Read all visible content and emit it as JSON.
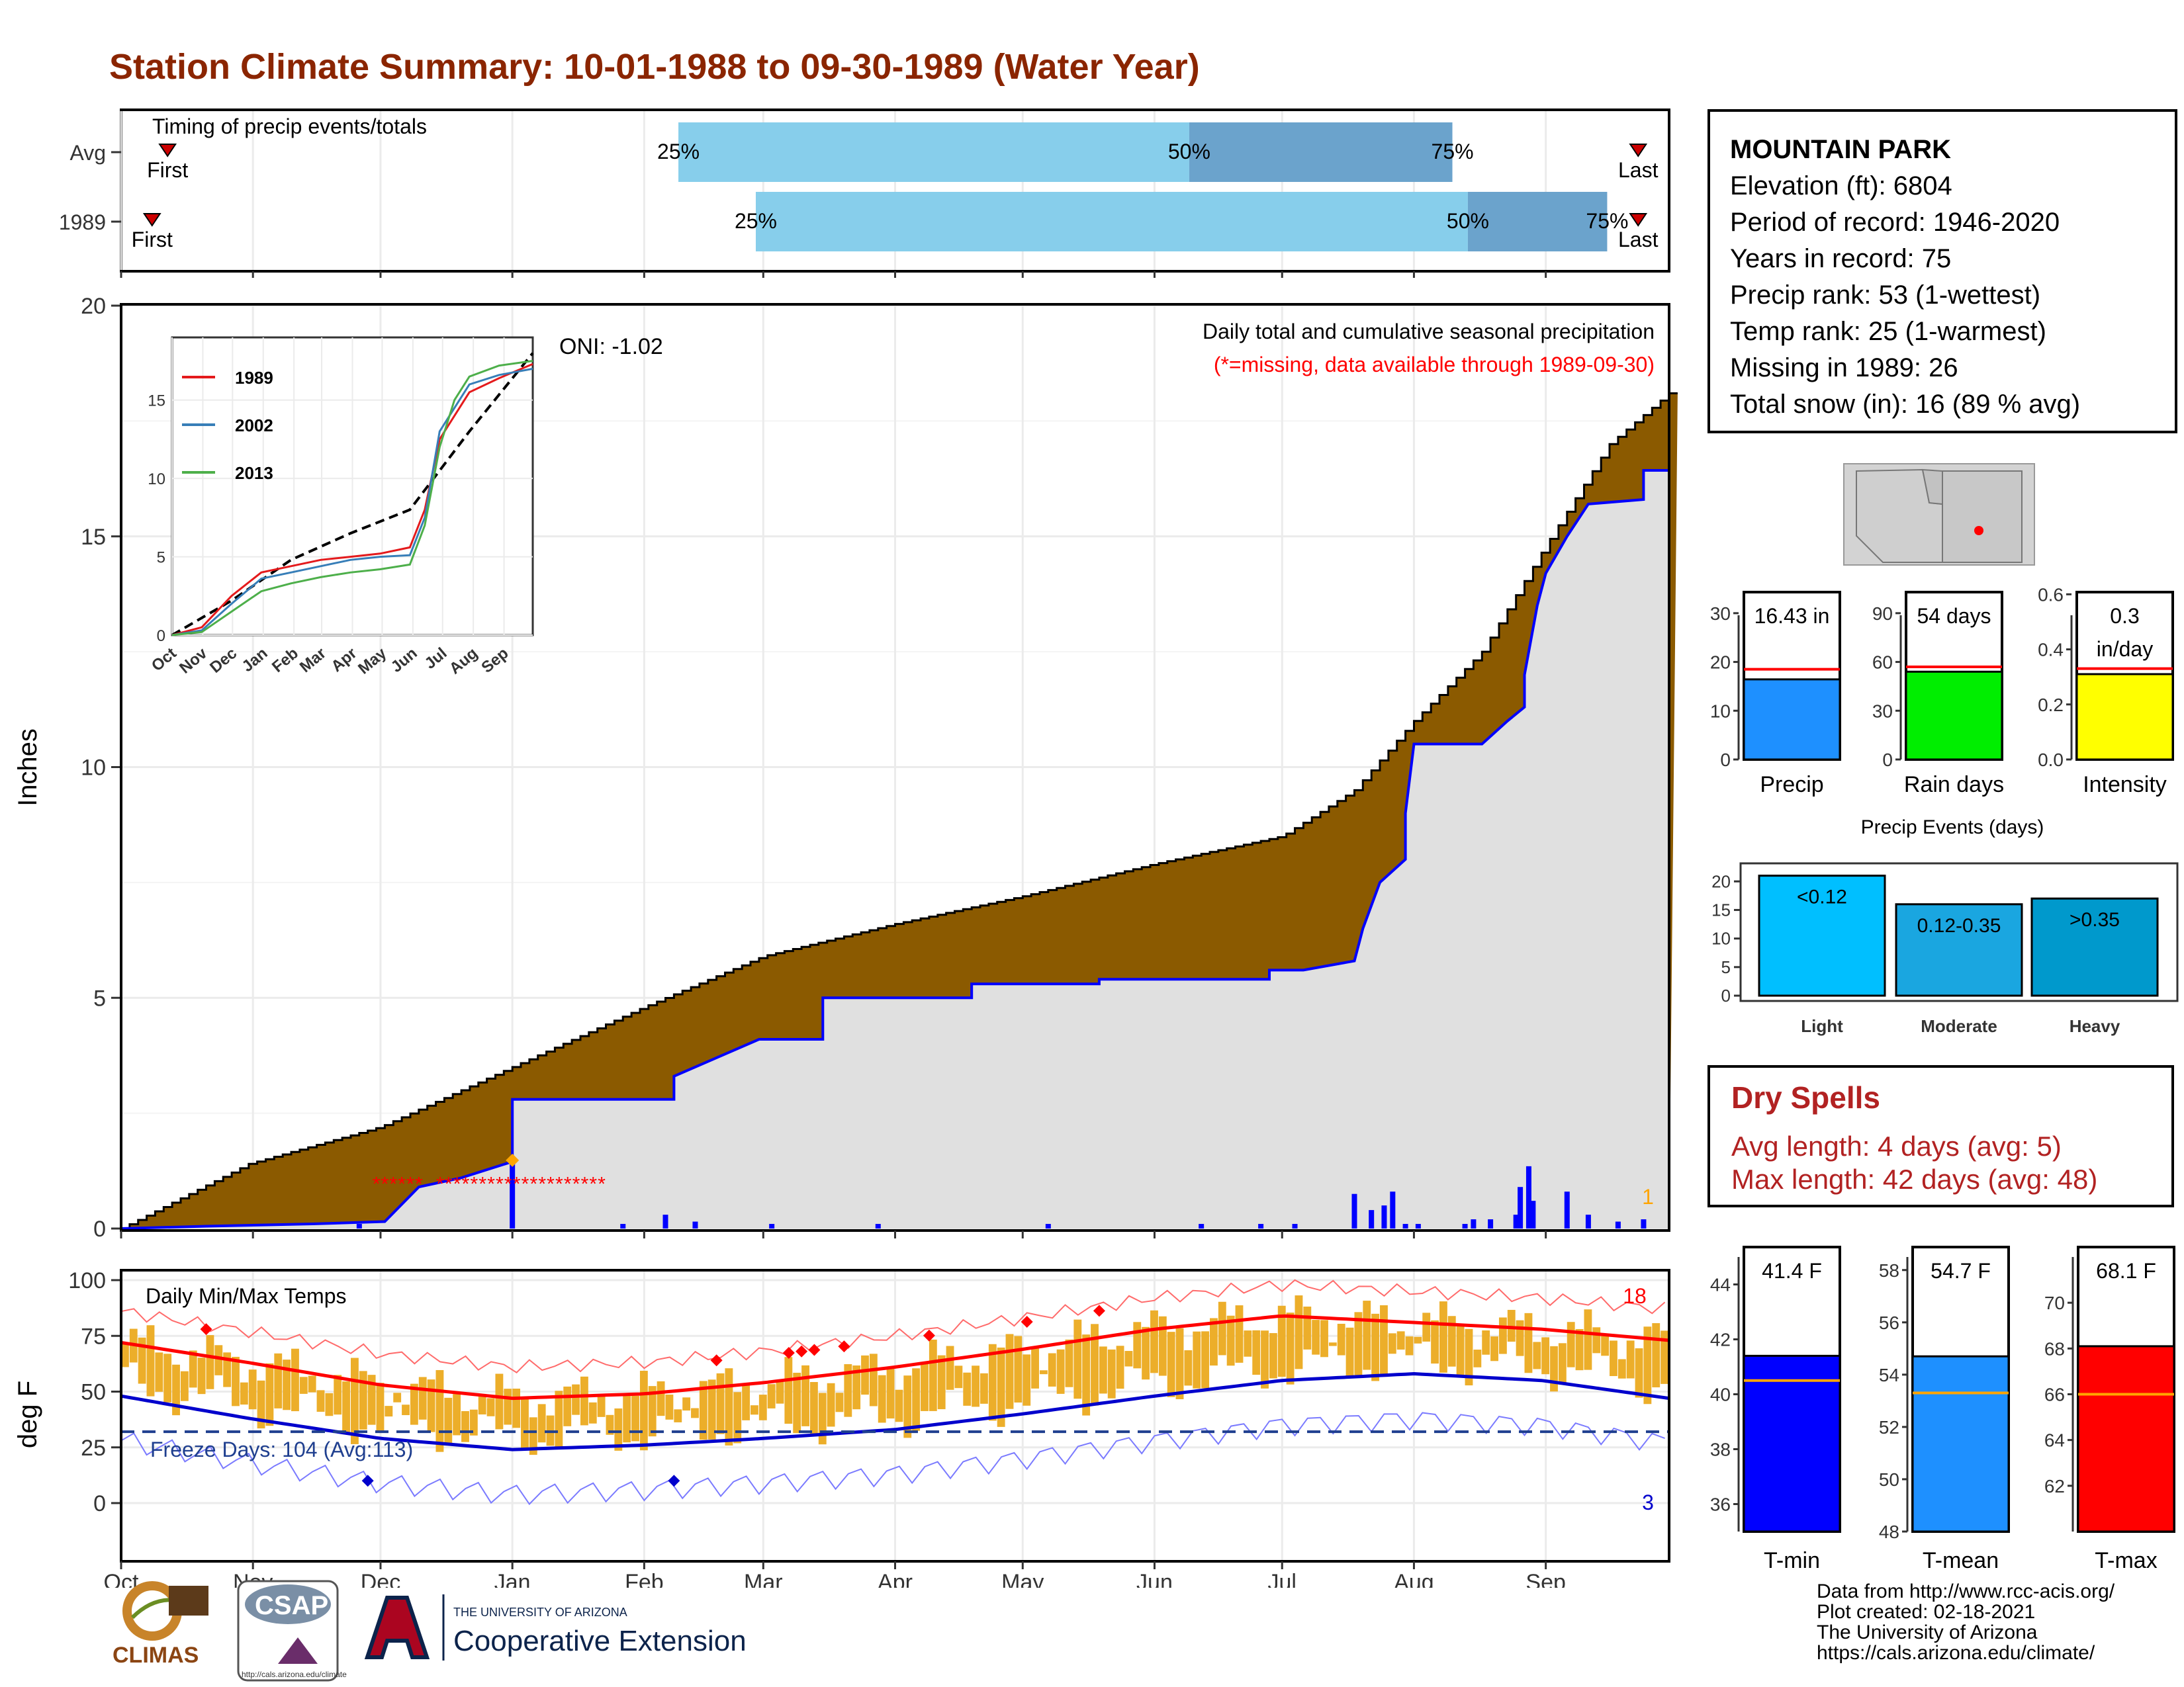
{
  "title": "Station Climate Summary: 10-01-1988 to 09-30-1989 (Water Year)",
  "timing": {
    "label": "Timing of precip events/totals",
    "rows": [
      {
        "name": "Avg",
        "q25": 0.36,
        "q50": 0.69,
        "q75": 0.86,
        "first": 0.03,
        "last": 0.98
      },
      {
        "name": "1989",
        "q25": 0.41,
        "q50": 0.87,
        "q75": 0.96,
        "first": 0.02,
        "last": 0.98
      }
    ],
    "pct_labels": [
      "25%",
      "50%",
      "75%"
    ],
    "first_label": "First",
    "last_label": "Last"
  },
  "station": {
    "name": "MOUNTAIN PARK",
    "lines": [
      "Elevation (ft): 6804",
      "Period of record: 1946-2020",
      "Years in record: 75",
      "Precip rank: 53 (1-wettest)",
      "Temp rank: 25 (1-warmest)",
      "Missing in 1989: 26",
      "Total snow (in): 16 (89 % avg)"
    ]
  },
  "precip_chart": {
    "ylabel": "Inches",
    "oni_label": "ONI: -1.02",
    "title": "Daily total and cumulative seasonal precipitation",
    "note": "(*=missing, data available through 1989-09-30)",
    "corner_count": "1",
    "yticks": [
      0,
      5,
      10,
      15,
      20
    ],
    "months": [
      "Oct",
      "Nov",
      "Dec",
      "Jan",
      "Feb",
      "Mar",
      "Apr",
      "May",
      "Jun",
      "Jul",
      "Aug",
      "Sep"
    ],
    "avg_cum": [
      [
        0,
        0
      ],
      [
        30,
        1.4
      ],
      [
        61,
        2.2
      ],
      [
        92,
        3.5
      ],
      [
        123,
        4.8
      ],
      [
        151,
        5.9
      ],
      [
        182,
        6.6
      ],
      [
        212,
        7.2
      ],
      [
        243,
        7.9
      ],
      [
        273,
        8.5
      ],
      [
        290,
        9.5
      ],
      [
        304,
        11.0
      ],
      [
        320,
        12.5
      ],
      [
        335,
        14.8
      ],
      [
        350,
        17.0
      ],
      [
        364,
        18.1
      ]
    ],
    "obs_cum": [
      [
        0,
        0
      ],
      [
        20,
        0.05
      ],
      [
        45,
        0.1
      ],
      [
        62,
        0.15
      ],
      [
        70,
        0.9
      ],
      [
        80,
        1.1
      ],
      [
        92,
        1.45
      ],
      [
        92,
        2.8
      ],
      [
        130,
        2.8
      ],
      [
        130,
        3.3
      ],
      [
        140,
        3.7
      ],
      [
        150,
        4.1
      ],
      [
        165,
        4.1
      ],
      [
        165,
        5.0
      ],
      [
        200,
        5.0
      ],
      [
        200,
        5.3
      ],
      [
        230,
        5.3
      ],
      [
        230,
        5.4
      ],
      [
        270,
        5.4
      ],
      [
        270,
        5.6
      ],
      [
        278,
        5.6
      ],
      [
        290,
        5.8
      ],
      [
        292,
        6.5
      ],
      [
        296,
        7.5
      ],
      [
        302,
        8.0
      ],
      [
        302,
        9.0
      ],
      [
        304,
        10.5
      ],
      [
        320,
        10.5
      ],
      [
        326,
        11.0
      ],
      [
        330,
        11.3
      ],
      [
        330,
        12.0
      ],
      [
        333,
        13.5
      ],
      [
        335,
        14.2
      ],
      [
        340,
        15.0
      ],
      [
        345,
        15.7
      ],
      [
        358,
        15.8
      ],
      [
        358,
        16.43
      ],
      [
        364,
        16.43
      ]
    ],
    "daily_bars": [
      [
        56,
        0.1
      ],
      [
        92,
        1.45
      ],
      [
        118,
        0.1
      ],
      [
        128,
        0.3
      ],
      [
        135,
        0.15
      ],
      [
        153,
        0.1
      ],
      [
        178,
        0.1
      ],
      [
        218,
        0.1
      ],
      [
        254,
        0.1
      ],
      [
        268,
        0.1
      ],
      [
        276,
        0.1
      ],
      [
        290,
        0.75
      ],
      [
        294,
        0.4
      ],
      [
        297,
        0.5
      ],
      [
        299,
        0.8
      ],
      [
        302,
        0.1
      ],
      [
        305,
        0.1
      ],
      [
        316,
        0.1
      ],
      [
        318,
        0.2
      ],
      [
        322,
        0.2
      ],
      [
        328,
        0.3
      ],
      [
        329,
        0.9
      ],
      [
        331,
        1.35
      ],
      [
        332,
        0.6
      ],
      [
        340,
        0.8
      ],
      [
        345,
        0.3
      ],
      [
        352,
        0.15
      ],
      [
        358,
        0.2
      ]
    ],
    "missing_days": [
      60,
      62,
      64,
      66,
      68,
      70,
      75,
      77,
      79,
      81,
      83,
      85,
      87,
      89,
      91,
      93,
      95,
      97,
      99,
      101,
      103,
      105,
      107,
      109,
      111,
      113
    ],
    "inset": {
      "series": [
        {
          "name": "1989",
          "color": "#e41a1c",
          "values": [
            [
              0,
              0
            ],
            [
              30,
              0.5
            ],
            [
              60,
              2.5
            ],
            [
              90,
              4.0
            ],
            [
              120,
              4.4
            ],
            [
              150,
              4.8
            ],
            [
              180,
              5.0
            ],
            [
              210,
              5.2
            ],
            [
              240,
              5.6
            ],
            [
              255,
              8.0
            ],
            [
              270,
              12.5
            ],
            [
              285,
              14.0
            ],
            [
              300,
              15.5
            ],
            [
              330,
              16.4
            ],
            [
              364,
              17.3
            ]
          ]
        },
        {
          "name": "2002",
          "color": "#377eb8",
          "values": [
            [
              0,
              0
            ],
            [
              30,
              0.3
            ],
            [
              60,
              2.0
            ],
            [
              90,
              3.6
            ],
            [
              120,
              4.0
            ],
            [
              150,
              4.4
            ],
            [
              180,
              4.8
            ],
            [
              210,
              5.0
            ],
            [
              240,
              5.1
            ],
            [
              255,
              7.5
            ],
            [
              270,
              13.0
            ],
            [
              285,
              14.5
            ],
            [
              300,
              16.0
            ],
            [
              330,
              16.6
            ],
            [
              364,
              17.0
            ]
          ]
        },
        {
          "name": "2013",
          "color": "#4daf4a",
          "values": [
            [
              0,
              0
            ],
            [
              30,
              0.2
            ],
            [
              60,
              1.5
            ],
            [
              90,
              2.8
            ],
            [
              120,
              3.3
            ],
            [
              150,
              3.7
            ],
            [
              180,
              4.0
            ],
            [
              210,
              4.2
            ],
            [
              240,
              4.5
            ],
            [
              255,
              7.0
            ],
            [
              270,
              12.0
            ],
            [
              285,
              15.0
            ],
            [
              300,
              16.5
            ],
            [
              330,
              17.2
            ],
            [
              364,
              17.5
            ]
          ]
        }
      ],
      "avg": [
        [
          0,
          0
        ],
        [
          60,
          2.2
        ],
        [
          120,
          4.8
        ],
        [
          180,
          6.5
        ],
        [
          240,
          8.0
        ],
        [
          300,
          13.0
        ],
        [
          364,
          18.0
        ]
      ],
      "yticks": [
        0,
        5,
        10,
        15
      ],
      "months": [
        "Oct",
        "Nov",
        "Dec",
        "Jan",
        "Feb",
        "Mar",
        "Apr",
        "May",
        "Jun",
        "Jul",
        "Aug",
        "Sep"
      ]
    }
  },
  "temp_chart": {
    "ylabel": "deg F",
    "title": "Daily Min/Max Temps",
    "freeze_label": "Freeze Days: 104 (Avg:113)",
    "red_count": "18",
    "blue_count": "3",
    "yticks": [
      0,
      25,
      50,
      75,
      100
    ],
    "months": [
      "Oct",
      "Nov",
      "Dec",
      "Jan",
      "Feb",
      "Mar",
      "Apr",
      "May",
      "Jun",
      "Jul",
      "Aug",
      "Sep"
    ],
    "avg_max": [
      [
        0,
        72
      ],
      [
        30,
        63
      ],
      [
        61,
        53
      ],
      [
        92,
        47
      ],
      [
        123,
        49
      ],
      [
        151,
        54
      ],
      [
        182,
        61
      ],
      [
        212,
        69
      ],
      [
        243,
        78
      ],
      [
        273,
        84
      ],
      [
        304,
        81
      ],
      [
        334,
        78
      ],
      [
        364,
        73
      ]
    ],
    "avg_min": [
      [
        0,
        48
      ],
      [
        30,
        38
      ],
      [
        61,
        29
      ],
      [
        92,
        24
      ],
      [
        123,
        26
      ],
      [
        151,
        29
      ],
      [
        182,
        33
      ],
      [
        212,
        40
      ],
      [
        243,
        48
      ],
      [
        273,
        55
      ],
      [
        304,
        58
      ],
      [
        334,
        55
      ],
      [
        364,
        47
      ]
    ],
    "freeze_line": 32
  },
  "summary_bars": {
    "precip": {
      "label": "Precip",
      "value_label": "16.43 in",
      "value": 16.43,
      "avg": 18.5,
      "max": 35,
      "yticks": [
        0,
        10,
        20,
        30
      ],
      "color": "#1e90ff"
    },
    "rain_days": {
      "label": "Rain days",
      "value_label": "54 days",
      "value": 54,
      "avg": 57,
      "max": 105,
      "yticks": [
        0,
        30,
        60,
        90
      ],
      "color": "#00ee00"
    },
    "intensity": {
      "label": "Intensity",
      "value_label": "0.3",
      "value_unit": "in/day",
      "value": 0.31,
      "avg": 0.33,
      "max": 0.62,
      "yticks": [
        "0.0",
        "0.2",
        "0.4",
        "0.6"
      ],
      "color": "#ffff00"
    }
  },
  "events": {
    "title": "Precip Events (days)",
    "yticks": [
      0,
      5,
      10,
      15,
      20
    ],
    "bars": [
      {
        "name": "Light",
        "label": "<0.12",
        "value": 21,
        "color": "#00bfff"
      },
      {
        "name": "Moderate",
        "label": "0.12-0.35",
        "value": 16,
        "color": "#1aa6e0"
      },
      {
        "name": "Heavy",
        "label": ">0.35",
        "value": 17,
        "color": "#0099cc"
      }
    ]
  },
  "dry_spells": {
    "title": "Dry Spells",
    "avg_line": "Avg length: 4 days (avg: 5)",
    "max_line": "Max length: 42 days (avg: 48)"
  },
  "temp_bars": {
    "tmin": {
      "label": "T-min",
      "value_label": "41.4 F",
      "value": 41.4,
      "avg": 40.5,
      "ylim": [
        35,
        45
      ],
      "yticks": [
        36,
        38,
        40,
        42,
        44
      ],
      "color": "#0000ff"
    },
    "tmean": {
      "label": "T-mean",
      "value_label": "54.7 F",
      "value": 54.7,
      "avg": 53.3,
      "ylim": [
        48,
        58.5
      ],
      "yticks": [
        48,
        50,
        52,
        54,
        56,
        58
      ],
      "color": "#1e90ff"
    },
    "tmax": {
      "label": "T-max",
      "value_label": "68.1 F",
      "value": 68.1,
      "avg": 66,
      "ylim": [
        60,
        72
      ],
      "yticks": [
        62,
        64,
        66,
        68,
        70
      ],
      "color": "#ff0000"
    }
  },
  "footer": {
    "lines": [
      "Data from http://www.rcc-acis.org/",
      "Plot created: 02-18-2021",
      "The University of Arizona",
      "https://cals.arizona.edu/climate/"
    ],
    "climas_label": "CLIMAS",
    "csap_label": "CSAP",
    "csap_url": "http://cals.arizona.edu/climate",
    "ua_small": "THE UNIVERSITY OF ARIZONA",
    "ua_big": "Cooperative Extension"
  }
}
